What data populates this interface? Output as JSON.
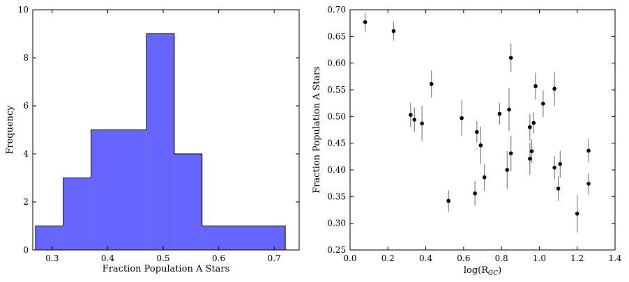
{
  "chart_data": [
    {
      "type": "bar",
      "subtype": "histogram",
      "xlabel": "Fraction Population A Stars",
      "ylabel": "Frequency",
      "xlim": [
        0.265,
        0.745
      ],
      "ylim": [
        0,
        10
      ],
      "xticks": [
        "0.3",
        "0.4",
        "0.5",
        "0.6",
        "0.7"
      ],
      "xtick_values": [
        0.3,
        0.4,
        0.5,
        0.6,
        0.7
      ],
      "yticks": [
        "0",
        "2",
        "4",
        "6",
        "8",
        "10"
      ],
      "ytick_values": [
        0,
        2,
        4,
        6,
        8,
        10
      ],
      "bins": [
        {
          "start": 0.27,
          "end": 0.32,
          "count": 1
        },
        {
          "start": 0.32,
          "end": 0.37,
          "count": 3
        },
        {
          "start": 0.37,
          "end": 0.47,
          "count": 5
        },
        {
          "start": 0.47,
          "end": 0.52,
          "count": 9
        },
        {
          "start": 0.52,
          "end": 0.57,
          "count": 4
        },
        {
          "start": 0.57,
          "end": 0.72,
          "count": 1
        }
      ],
      "fill_color": "#6666ff",
      "edge_color": "#000000",
      "grid": false
    },
    {
      "type": "scatter",
      "xlabel": "log(R",
      "xlabel_sub": "GC",
      "xlabel_close": ")",
      "ylabel": "Fraction Population A Stars",
      "xlim": [
        0.0,
        1.4
      ],
      "ylim": [
        0.25,
        0.7
      ],
      "xticks": [
        "0.0",
        "0.2",
        "0.4",
        "0.6",
        "0.8",
        "1.0",
        "1.2",
        "1.4"
      ],
      "xtick_values": [
        0.0,
        0.2,
        0.4,
        0.6,
        0.8,
        1.0,
        1.2,
        1.4
      ],
      "yticks": [
        "0.25",
        "0.30",
        "0.35",
        "0.40",
        "0.45",
        "0.50",
        "0.55",
        "0.60",
        "0.65",
        "0.70"
      ],
      "ytick_values": [
        0.25,
        0.3,
        0.35,
        0.4,
        0.45,
        0.5,
        0.55,
        0.6,
        0.65,
        0.7
      ],
      "points": [
        {
          "x": 0.08,
          "y": 0.677,
          "err": 0.018
        },
        {
          "x": 0.23,
          "y": 0.66,
          "err": 0.018
        },
        {
          "x": 0.32,
          "y": 0.503,
          "err": 0.023
        },
        {
          "x": 0.34,
          "y": 0.494,
          "err": 0.023
        },
        {
          "x": 0.38,
          "y": 0.487,
          "err": 0.033
        },
        {
          "x": 0.43,
          "y": 0.561,
          "err": 0.025
        },
        {
          "x": 0.52,
          "y": 0.342,
          "err": 0.02
        },
        {
          "x": 0.59,
          "y": 0.497,
          "err": 0.033
        },
        {
          "x": 0.66,
          "y": 0.356,
          "err": 0.023
        },
        {
          "x": 0.67,
          "y": 0.471,
          "err": 0.02
        },
        {
          "x": 0.69,
          "y": 0.446,
          "err": 0.035
        },
        {
          "x": 0.71,
          "y": 0.386,
          "err": 0.025
        },
        {
          "x": 0.79,
          "y": 0.505,
          "err": 0.02
        },
        {
          "x": 0.83,
          "y": 0.4,
          "err": 0.035
        },
        {
          "x": 0.84,
          "y": 0.513,
          "err": 0.04
        },
        {
          "x": 0.85,
          "y": 0.431,
          "err": 0.033
        },
        {
          "x": 0.85,
          "y": 0.61,
          "err": 0.027
        },
        {
          "x": 0.95,
          "y": 0.421,
          "err": 0.03
        },
        {
          "x": 0.95,
          "y": 0.48,
          "err": 0.025
        },
        {
          "x": 0.96,
          "y": 0.435,
          "err": 0.022
        },
        {
          "x": 0.97,
          "y": 0.488,
          "err": 0.02
        },
        {
          "x": 0.98,
          "y": 0.557,
          "err": 0.025
        },
        {
          "x": 1.02,
          "y": 0.524,
          "err": 0.025
        },
        {
          "x": 1.08,
          "y": 0.404,
          "err": 0.022
        },
        {
          "x": 1.08,
          "y": 0.552,
          "err": 0.032
        },
        {
          "x": 1.1,
          "y": 0.365,
          "err": 0.023
        },
        {
          "x": 1.11,
          "y": 0.411,
          "err": 0.025
        },
        {
          "x": 1.2,
          "y": 0.318,
          "err": 0.035
        },
        {
          "x": 1.26,
          "y": 0.374,
          "err": 0.02
        },
        {
          "x": 1.26,
          "y": 0.436,
          "err": 0.022
        }
      ],
      "marker_color": "#000000",
      "errorbar_color": "#808080",
      "grid": false
    }
  ]
}
